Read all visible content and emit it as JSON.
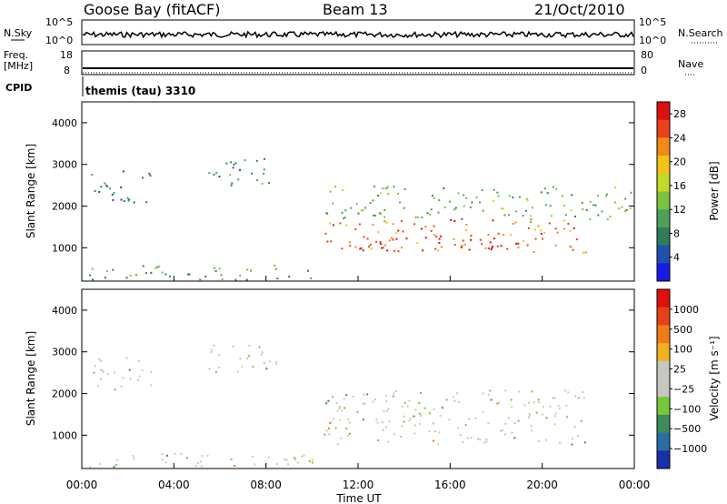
{
  "header": {
    "station": "Goose Bay (fitACF)",
    "beam": "Beam 13",
    "date": "21/Oct/2010"
  },
  "noise_panel": {
    "left_label": "N.Sky",
    "right_label": "N.Search",
    "ticks": [
      "10^5",
      "10^0"
    ]
  },
  "freq_panel": {
    "left_label_line1": "Freq.",
    "left_label_line2": "[MHz]",
    "right_label": "Nave",
    "left_ticks": [
      "18",
      "8"
    ],
    "right_ticks": [
      "80",
      "0"
    ]
  },
  "cpid": {
    "label": "CPID",
    "value": "themis (tau) 3310"
  },
  "xaxis": {
    "title": "Time UT",
    "ticks": [
      "00:00",
      "04:00",
      "08:00",
      "12:00",
      "16:00",
      "20:00",
      "00:00"
    ]
  },
  "colors": {
    "power_scale": [
      "#1a1ae6",
      "#2050b0",
      "#2e7d5a",
      "#4fa05a",
      "#7cc23e",
      "#c6d82a",
      "#f2c21a",
      "#f08a1a",
      "#e8421a",
      "#dd1010"
    ],
    "velocity_scale": [
      "#1a2fa8",
      "#2a6ea0",
      "#3c8c5a",
      "#74c83a",
      "#c8c8c0",
      "#c8c8c0",
      "#f0b020",
      "#f07a1a",
      "#e84018",
      "#e01010"
    ]
  },
  "chart_data": [
    {
      "type": "line",
      "title": "",
      "series": [
        {
          "name": "N.Sky",
          "approx_log10_level": 1.5
        }
      ],
      "ylim": [
        0,
        5
      ]
    },
    {
      "type": "line",
      "series": [
        {
          "name": "Freq.",
          "values_mhz": 10.5
        }
      ],
      "ylim": [
        8,
        18
      ]
    },
    {
      "type": "heatmap",
      "ylabel": "Slant Range [km]",
      "xlabel": "Time UT",
      "xlim": [
        0,
        24
      ],
      "ylim": [
        200,
        4500
      ],
      "yticks": [
        "1000",
        "2000",
        "3000",
        "4000"
      ],
      "colorbar": {
        "title": "Power [dB]",
        "ticks": [
          "4",
          "8",
          "12",
          "16",
          "20",
          "24",
          "28"
        ],
        "range": [
          0,
          30
        ]
      },
      "regions": [
        {
          "t0": 0.4,
          "t1": 3.0,
          "r0": 2100,
          "r1": 2900,
          "value_db": 8
        },
        {
          "t0": 5.5,
          "t1": 8.5,
          "r0": 2500,
          "r1": 3200,
          "value_db": 9
        },
        {
          "t0": 0.3,
          "t1": 10.0,
          "r0": 250,
          "r1": 600,
          "value_db": 10
        },
        {
          "t0": 10.5,
          "t1": 22.0,
          "r0": 900,
          "r1": 1700,
          "value_db": 24
        },
        {
          "t0": 12.0,
          "t1": 18.0,
          "r0": 950,
          "r1": 1300,
          "value_db": 28
        },
        {
          "t0": 10.5,
          "t1": 24.0,
          "r0": 1700,
          "r1": 2500,
          "value_db": 12
        }
      ]
    },
    {
      "type": "heatmap",
      "ylabel": "Slant Range [km]",
      "xlabel": "Time UT",
      "xlim": [
        0,
        24
      ],
      "ylim": [
        200,
        4500
      ],
      "yticks": [
        "1000",
        "2000",
        "3000",
        "4000"
      ],
      "colorbar": {
        "title": "Velocity [m s⁻¹]",
        "ticks": [
          "1000",
          "500",
          "100",
          "25",
          "−25",
          "−100",
          "−500",
          "−1000"
        ]
      },
      "regions": [
        {
          "t0": 0.4,
          "t1": 3.0,
          "r0": 2100,
          "r1": 2900,
          "value_ms": 0
        },
        {
          "t0": 5.5,
          "t1": 8.5,
          "r0": 2500,
          "r1": 3200,
          "value_ms": 0
        },
        {
          "t0": 10.5,
          "t1": 22.0,
          "r0": 800,
          "r1": 2100,
          "value_ms": 0
        },
        {
          "t0": 0.3,
          "t1": 10.0,
          "r0": 250,
          "r1": 600,
          "value_ms": 50
        }
      ]
    }
  ]
}
